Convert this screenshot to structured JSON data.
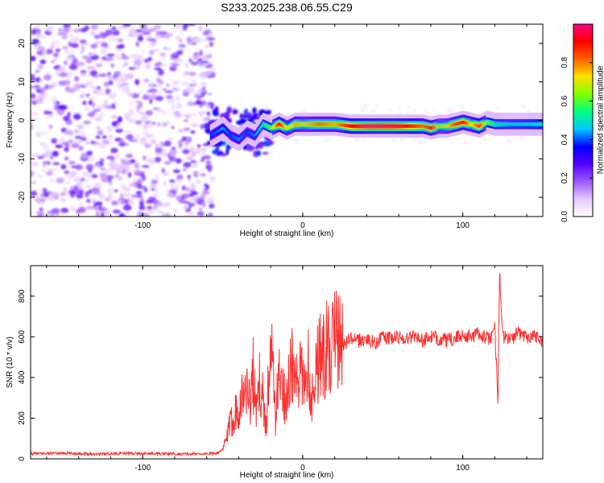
{
  "chart_data": [
    {
      "type": "heatmap",
      "panel": "spectrogram",
      "title": "S233.2025.238.06.55.C29",
      "xlabel": "Height of straight line (km)",
      "ylabel": "Frequency (Hz)",
      "xlim": [
        -170,
        150
      ],
      "ylim": [
        -25,
        25
      ],
      "xticks": [
        -100,
        0,
        100
      ],
      "xtick_labels": [
        "-100",
        "0",
        "100"
      ],
      "yticks": [
        -20,
        -10,
        0,
        10,
        20
      ],
      "ytick_labels": [
        "-20",
        "-10",
        "0",
        "10",
        "20"
      ],
      "colorbar": {
        "label": "Normalized spectral amplitude",
        "range": [
          0,
          1
        ],
        "ticks": [
          0.0,
          0.2,
          0.4,
          0.6,
          0.8
        ],
        "tick_labels": [
          "0.0",
          "0.2",
          "0.4",
          "0.6",
          "0.8"
        ],
        "colormap": [
          "#ffffff",
          "#e6c8ff",
          "#9b59ff",
          "#5500ff",
          "#0000ff",
          "#00c8ff",
          "#00ff80",
          "#80ff00",
          "#ffe000",
          "#ff6000",
          "#ff0000",
          "#ff0080"
        ]
      },
      "noise_region_x": [
        -170,
        -60
      ],
      "transition_region_x": [
        -60,
        -20
      ],
      "ridge_x": [
        -58,
        -50,
        -45,
        -40,
        -35,
        -30,
        -25,
        -20,
        -15,
        -10,
        -5,
        0,
        5,
        10,
        20,
        30,
        40,
        50,
        60,
        70,
        75,
        80,
        85,
        90,
        95,
        100,
        105,
        110,
        115,
        120,
        130,
        140,
        150
      ],
      "ridge_freq": [
        -4,
        -2,
        -4,
        -5,
        -3,
        -4,
        -1,
        -2,
        -1,
        -2,
        -1,
        -1,
        -1,
        -1,
        -1,
        -1.5,
        -1.5,
        -1.5,
        -1.5,
        -1.5,
        -1.5,
        -2,
        -1.5,
        -1.5,
        -1,
        -0.5,
        -1,
        -1.5,
        -0.5,
        -1,
        -1,
        -1,
        -1
      ],
      "ridge_amp": [
        0.3,
        0.35,
        0.3,
        0.35,
        0.3,
        0.35,
        0.45,
        0.55,
        0.85,
        0.6,
        0.7,
        0.65,
        0.7,
        0.75,
        0.7,
        0.85,
        0.92,
        0.92,
        0.9,
        0.8,
        0.75,
        0.85,
        0.6,
        0.65,
        0.8,
        0.85,
        0.65,
        0.8,
        0.55,
        0.45,
        0.4,
        0.4,
        0.4
      ]
    },
    {
      "type": "line",
      "panel": "snr",
      "xlabel": "Height of straight line (km)",
      "ylabel": "SNR (10 * v/v)",
      "xlim": [
        -170,
        150
      ],
      "ylim": [
        0,
        950
      ],
      "xticks": [
        -100,
        0,
        100
      ],
      "xtick_labels": [
        "-100",
        "0",
        "100"
      ],
      "yticks": [
        0,
        200,
        400,
        600,
        800
      ],
      "ytick_labels": [
        "0",
        "200",
        "400",
        "600",
        "800"
      ],
      "line_color": "#ff3030",
      "series": [
        {
          "name": "SNR",
          "x": [
            -170,
            -150,
            -130,
            -110,
            -90,
            -70,
            -55,
            -50,
            -47,
            -44,
            -41,
            -38,
            -35,
            -33,
            -31,
            -29,
            -27,
            -25,
            -23,
            -21,
            -19,
            -17,
            -15,
            -13,
            -11,
            -9,
            -7,
            -5,
            -3,
            -1,
            1,
            3,
            5,
            7,
            9,
            11,
            13,
            15,
            17,
            20,
            25,
            30,
            35,
            40,
            45,
            50,
            55,
            60,
            65,
            70,
            75,
            80,
            85,
            90,
            95,
            100,
            105,
            110,
            115,
            118,
            120,
            122,
            123,
            125,
            130,
            135,
            140,
            145,
            150
          ],
          "y": [
            25,
            28,
            24,
            27,
            25,
            24,
            26,
            40,
            120,
            200,
            250,
            300,
            350,
            280,
            420,
            200,
            380,
            300,
            150,
            450,
            480,
            200,
            400,
            350,
            300,
            380,
            450,
            400,
            350,
            420,
            380,
            500,
            300,
            350,
            480,
            520,
            500,
            540,
            560,
            580,
            560,
            590,
            580,
            590,
            570,
            600,
            590,
            600,
            590,
            610,
            580,
            600,
            590,
            580,
            590,
            610,
            600,
            620,
            590,
            600,
            640,
            300,
            920,
            600,
            590,
            620,
            600,
            610,
            580
          ]
        }
      ]
    }
  ]
}
